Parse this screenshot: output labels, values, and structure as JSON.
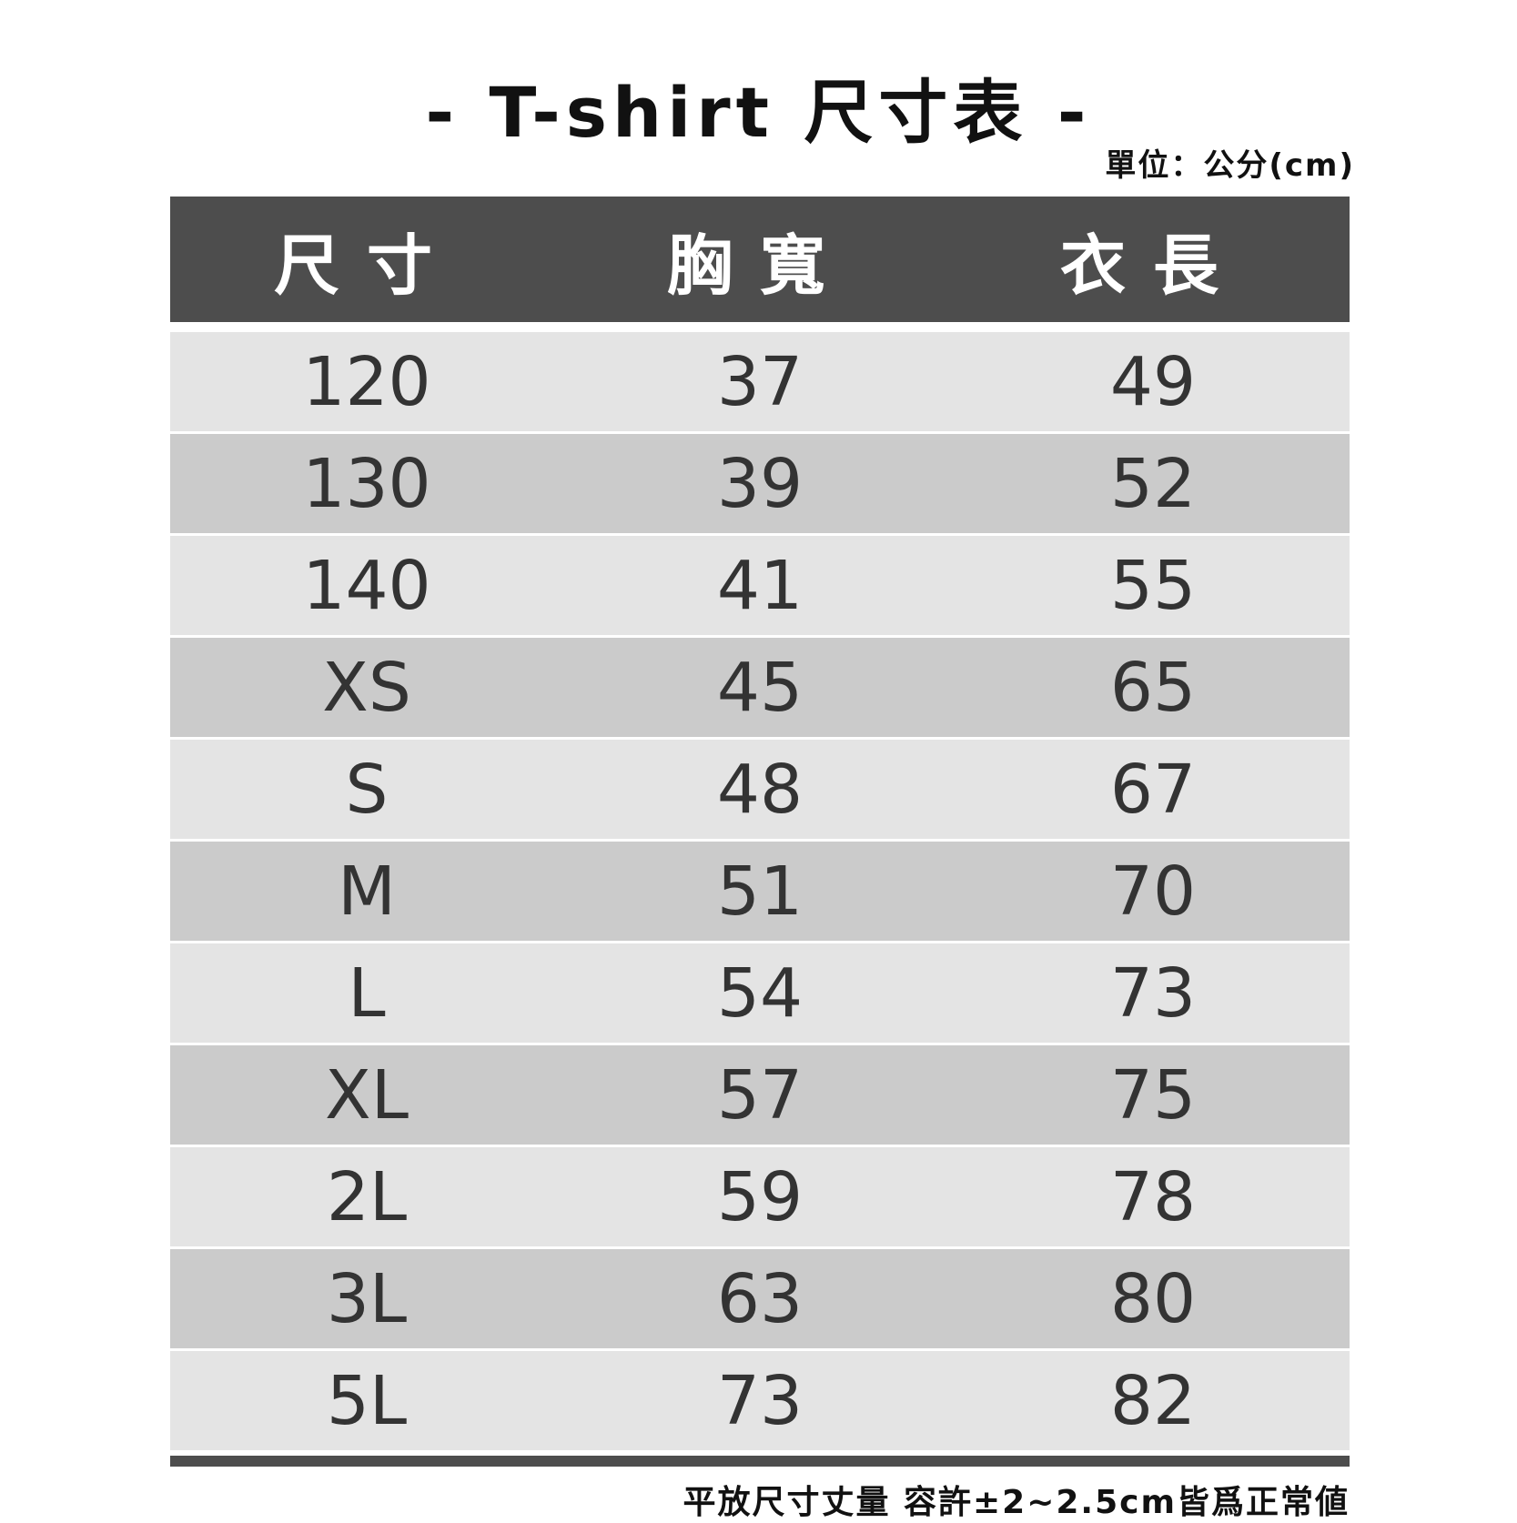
{
  "title": "-  T-shirt 尺寸表 -",
  "unit": "單位：公分(cm)",
  "headers": [
    "尺寸",
    "胸寬",
    "衣長"
  ],
  "rows": [
    [
      "120",
      "37",
      "49"
    ],
    [
      "130",
      "39",
      "52"
    ],
    [
      "140",
      "41",
      "55"
    ],
    [
      "XS",
      "45",
      "65"
    ],
    [
      "S",
      "48",
      "67"
    ],
    [
      "M",
      "51",
      "70"
    ],
    [
      "L",
      "54",
      "73"
    ],
    [
      "XL",
      "57",
      "75"
    ],
    [
      "2L",
      "59",
      "78"
    ],
    [
      "3L",
      "63",
      "80"
    ],
    [
      "5L",
      "73",
      "82"
    ]
  ],
  "note": "平放尺寸丈量 容許±2~2.5cm皆爲正常値",
  "colors": {
    "header": "#4d4d4d",
    "row_light": "#e4e4e4",
    "row_dark": "#cbcbcb"
  }
}
